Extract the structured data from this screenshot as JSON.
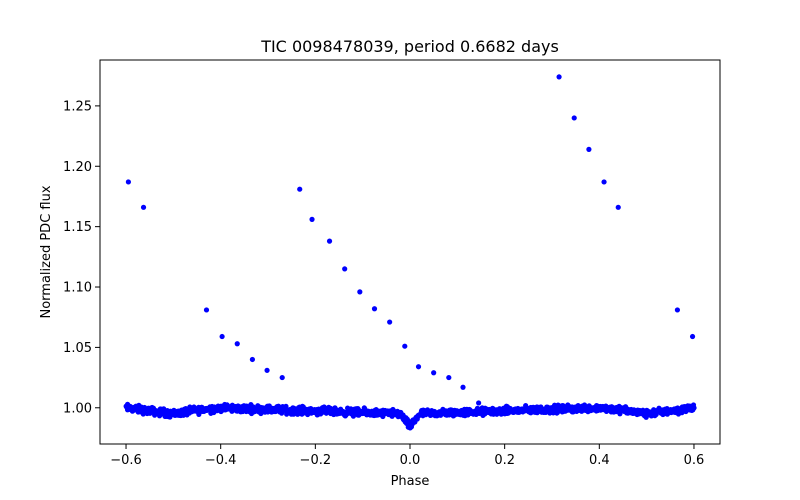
{
  "chart_data": {
    "type": "scatter",
    "title": "TIC 0098478039, period 0.6682 days",
    "xlabel": "Phase",
    "ylabel": "Normalized PDC flux",
    "xlim": [
      -0.655,
      0.655
    ],
    "ylim": [
      0.97,
      1.288
    ],
    "grid": false,
    "marker_color": "#0000ff",
    "x_ticks": [
      -0.6,
      -0.4,
      -0.2,
      0.0,
      0.2,
      0.4,
      0.6
    ],
    "x_tick_labels": [
      "−0.6",
      "−0.4",
      "−0.2",
      "0.0",
      "0.2",
      "0.4",
      "0.6"
    ],
    "y_ticks": [
      1.0,
      1.05,
      1.1,
      1.15,
      1.2,
      1.25
    ],
    "y_tick_labels": [
      "1.00",
      "1.05",
      "1.10",
      "1.15",
      "1.20",
      "1.25"
    ],
    "outliers": {
      "x": [
        -0.595,
        -0.563,
        -0.43,
        -0.397,
        -0.365,
        -0.333,
        -0.302,
        -0.27,
        -0.233,
        -0.207,
        -0.17,
        -0.138,
        -0.106,
        -0.075,
        -0.043,
        -0.011,
        0.018,
        0.05,
        0.082,
        0.112,
        0.145,
        0.315,
        0.347,
        0.378,
        0.41,
        0.44,
        0.565,
        0.597
      ],
      "y": [
        1.187,
        1.166,
        1.081,
        1.059,
        1.053,
        1.04,
        1.031,
        1.025,
        1.181,
        1.156,
        1.138,
        1.115,
        1.096,
        1.082,
        1.071,
        1.051,
        1.034,
        1.029,
        1.025,
        1.017,
        1.004,
        1.274,
        1.24,
        1.214,
        1.187,
        1.166,
        1.081,
        1.059
      ]
    },
    "baseline_model": {
      "description_points_x": [
        -0.6,
        -0.5,
        -0.45,
        -0.4,
        -0.02,
        0.0,
        0.02,
        0.4,
        0.45,
        0.5,
        0.6
      ],
      "description_points_y": [
        1.0,
        0.995,
        0.998,
        1.0,
        0.995,
        0.984,
        0.995,
        1.0,
        0.998,
        0.995,
        1.0
      ],
      "n_points": 1300
    }
  }
}
